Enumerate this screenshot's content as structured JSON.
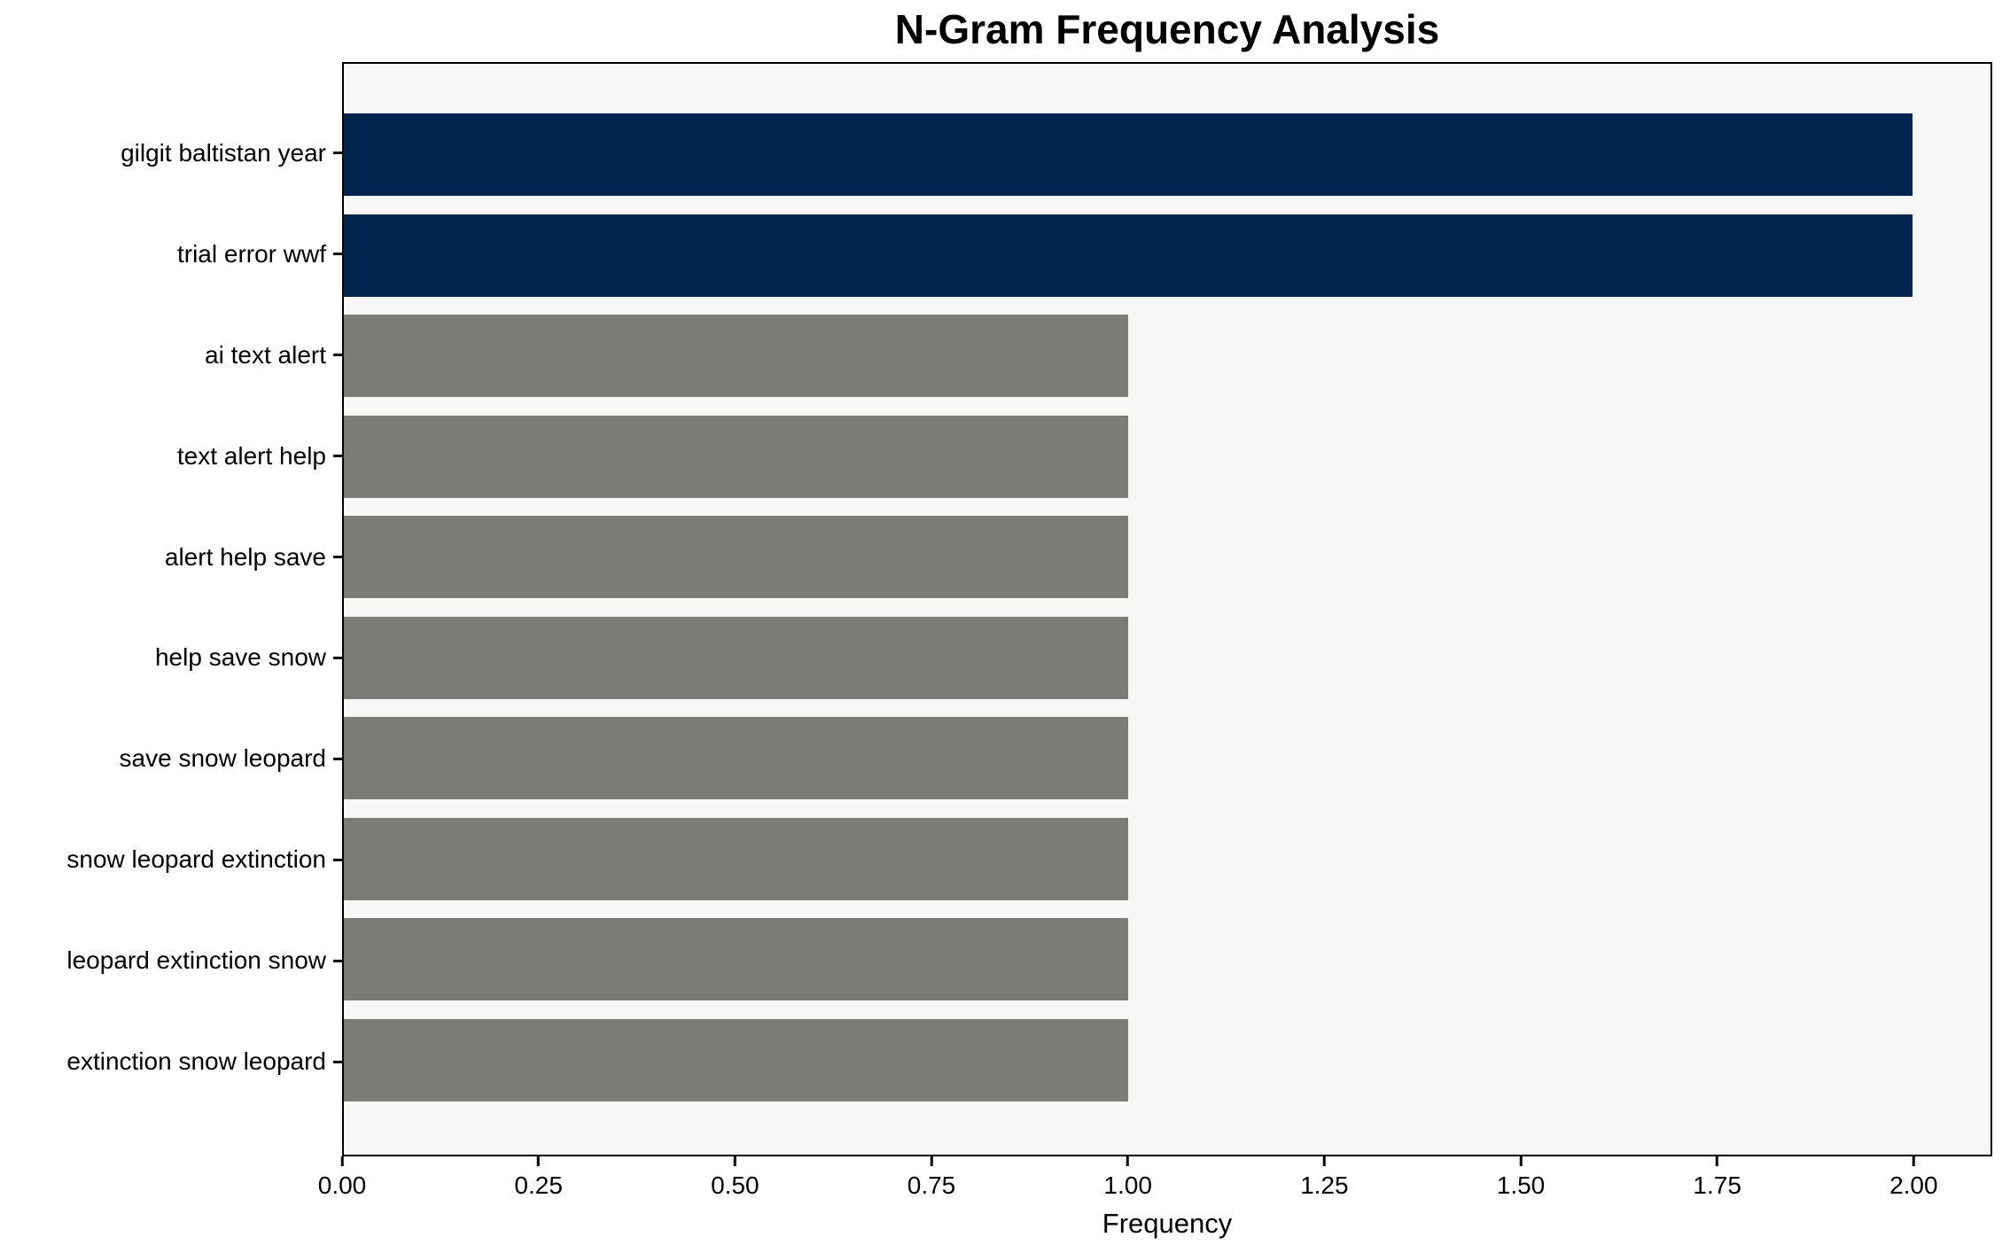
{
  "chart_data": {
    "type": "bar",
    "orientation": "horizontal",
    "title": "N-Gram Frequency Analysis",
    "xlabel": "Frequency",
    "ylabel": "",
    "categories": [
      "gilgit baltistan year",
      "trial error wwf",
      "ai text alert",
      "text alert help",
      "alert help save",
      "help save snow",
      "save snow leopard",
      "snow leopard extinction",
      "leopard extinction snow",
      "extinction snow leopard"
    ],
    "values": [
      2,
      2,
      1,
      1,
      1,
      1,
      1,
      1,
      1,
      1
    ],
    "bar_colors": [
      "#02254f",
      "#02254f",
      "#7b7b77",
      "#7b7b77",
      "#7b7b77",
      "#7b7b77",
      "#7b7b77",
      "#7b7b77",
      "#7b7b77",
      "#7b7b77"
    ],
    "xlim": [
      0,
      2.1
    ],
    "x_ticks": [
      {
        "value": 0.0,
        "label": "0.00"
      },
      {
        "value": 0.25,
        "label": "0.25"
      },
      {
        "value": 0.5,
        "label": "0.50"
      },
      {
        "value": 0.75,
        "label": "0.75"
      },
      {
        "value": 1.0,
        "label": "1.00"
      },
      {
        "value": 1.25,
        "label": "1.25"
      },
      {
        "value": 1.5,
        "label": "1.50"
      },
      {
        "value": 1.75,
        "label": "1.75"
      },
      {
        "value": 2.0,
        "label": "2.00"
      }
    ],
    "grid": false,
    "legend_position": "none",
    "colors": {
      "highlight_bar": "#02254f",
      "default_bar": "#7b7b77",
      "plot_background": "#f7f7f6",
      "figure_background": "#ffffff",
      "spine": "#000000",
      "text": "#000000"
    }
  }
}
